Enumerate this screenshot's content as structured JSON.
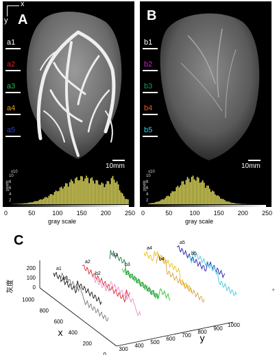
{
  "panelA": {
    "letter": "A",
    "axis_x": "x",
    "axis_y": "y",
    "markers": [
      {
        "label": "a1",
        "color": "#ffffff"
      },
      {
        "label": "a2",
        "color": "#e0202a"
      },
      {
        "label": "a3",
        "color": "#2fb84a"
      },
      {
        "label": "a4",
        "color": "#e0a020"
      },
      {
        "label": "a5",
        "color": "#2a3fd0"
      }
    ],
    "scale_bar": "10mm",
    "histogram": {
      "ylabel": "pixels",
      "yexp": "x10",
      "yticks": [
        "2",
        "4",
        "6",
        "8",
        "10"
      ]
    }
  },
  "panelB": {
    "letter": "B",
    "markers": [
      {
        "label": "b1",
        "color": "#ffffff"
      },
      {
        "label": "b2",
        "color": "#d020d0"
      },
      {
        "label": "b3",
        "color": "#1a9a5a"
      },
      {
        "label": "b4",
        "color": "#e06020"
      },
      {
        "label": "b5",
        "color": "#30d0e0"
      }
    ],
    "scale_bar": "10mm",
    "histogram": {
      "ylabel": "pixels",
      "yexp": "x10",
      "yticks": [
        "2",
        "4",
        "6",
        "8",
        "10"
      ]
    }
  },
  "grayscale_axis": {
    "ticks": [
      "0",
      "50",
      "100",
      "150",
      "200",
      "250"
    ],
    "label": "gray  scale"
  },
  "panelC": {
    "letter": "C",
    "zlabel": "灰度",
    "zticks": [
      "0",
      "100",
      "200"
    ],
    "x_axis_label": "x",
    "x_ticks": [
      "1000",
      "800",
      "600",
      "400",
      "200",
      "0"
    ],
    "y_axis_label": "y",
    "y_ticks": [
      "300",
      "400",
      "500",
      "600",
      "700",
      "800",
      "900",
      "1000"
    ],
    "series": [
      {
        "name": "a1",
        "color": "#111111"
      },
      {
        "name": "b1",
        "color": "#777777"
      },
      {
        "name": "a2",
        "color": "#d8202a"
      },
      {
        "name": "b2",
        "color": "#e890c8"
      },
      {
        "name": "a3",
        "color": "#1a7a3a"
      },
      {
        "name": "b3",
        "color": "#22c32a"
      },
      {
        "name": "a4",
        "color": "#e8c010"
      },
      {
        "name": "b4",
        "color": "#d8a040"
      },
      {
        "name": "a5",
        "color": "#1a1ab0"
      },
      {
        "name": "b5",
        "color": "#40c8e0"
      }
    ]
  },
  "footer_glyph": "+"
}
